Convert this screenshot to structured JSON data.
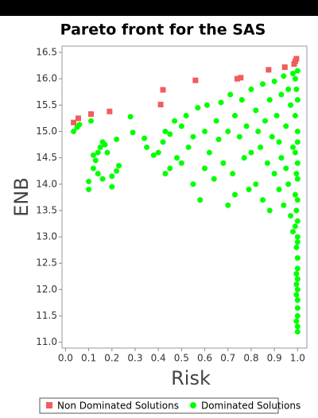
{
  "chart_data": {
    "type": "scatter",
    "title": "Pareto front for the SAS",
    "x_label": "Risk",
    "y_label": "ENB",
    "xlim": [
      -0.015,
      1.04
    ],
    "ylim": [
      10.89,
      16.62
    ],
    "xticks": [
      {
        "value": 0,
        "label": "0.0"
      },
      0.1,
      0.2,
      0.3,
      0.4,
      0.5,
      0.6,
      0.7,
      0.8,
      0.9,
      {
        "value": 1,
        "label": "1.0"
      }
    ],
    "yticks": [
      {
        "value": 11,
        "label": "11.0"
      },
      11.5,
      {
        "value": 12,
        "label": "12.0"
      },
      12.5,
      {
        "value": 13,
        "label": "13.0"
      },
      13.5,
      {
        "value": 14,
        "label": "14.0"
      },
      14.5,
      {
        "value": 15,
        "label": "15.0"
      },
      15.5,
      {
        "value": 16,
        "label": "16.0"
      },
      16.5
    ],
    "series": [
      {
        "name": "Non Dominated Solutions",
        "color": "#f25c5c",
        "marker": "square",
        "x": [
          0.035,
          0.055,
          0.11,
          0.19,
          0.41,
          0.42,
          0.56,
          0.74,
          0.755,
          0.875,
          0.945,
          0.985,
          0.99,
          0.995
        ],
        "values": [
          15.17,
          15.25,
          15.33,
          15.38,
          15.51,
          15.79,
          15.97,
          16.0,
          16.02,
          16.17,
          16.22,
          16.28,
          16.33,
          16.38
        ]
      },
      {
        "name": "Dominated Solutions",
        "color": "#00ff00",
        "marker": "circle",
        "x": [
          0.035,
          0.05,
          0.06,
          0.11,
          0.1,
          0.1,
          0.12,
          0.12,
          0.13,
          0.14,
          0.14,
          0.15,
          0.16,
          0.17,
          0.16,
          0.18,
          0.2,
          0.2,
          0.22,
          0.22,
          0.23,
          0.28,
          0.29,
          0.34,
          0.35,
          0.38,
          0.4,
          0.42,
          0.43,
          0.43,
          0.45,
          0.45,
          0.47,
          0.48,
          0.5,
          0.5,
          0.52,
          0.53,
          0.55,
          0.55,
          0.57,
          0.58,
          0.6,
          0.6,
          0.61,
          0.62,
          0.64,
          0.65,
          0.66,
          0.67,
          0.68,
          0.7,
          0.7,
          0.71,
          0.72,
          0.73,
          0.73,
          0.75,
          0.76,
          0.77,
          0.78,
          0.79,
          0.8,
          0.8,
          0.82,
          0.82,
          0.83,
          0.84,
          0.85,
          0.85,
          0.86,
          0.87,
          0.88,
          0.88,
          0.89,
          0.9,
          0.9,
          0.91,
          0.92,
          0.92,
          0.93,
          0.93,
          0.94,
          0.94,
          0.95,
          0.95,
          0.96,
          0.96,
          0.97,
          0.97,
          0.98,
          0.98,
          0.98,
          0.99,
          0.99,
          0.99,
          0.99,
          0.99,
          1.0,
          1.0,
          1.0,
          1.0,
          1.0,
          1.0,
          1.0,
          1.0,
          1.0,
          1.0,
          1.0,
          1.0,
          1.0,
          1.0,
          1.0,
          1.0,
          1.0,
          1.0,
          1.0,
          0.995,
          0.995,
          0.995,
          0.995,
          0.995,
          0.995,
          0.995,
          0.995
        ],
        "values": [
          15.0,
          15.08,
          15.13,
          15.2,
          13.9,
          14.05,
          14.3,
          14.55,
          14.45,
          14.2,
          14.6,
          14.7,
          14.8,
          14.75,
          14.1,
          14.6,
          13.95,
          14.15,
          14.25,
          14.85,
          14.35,
          15.28,
          14.98,
          14.87,
          14.7,
          14.55,
          14.6,
          14.8,
          15.0,
          14.2,
          14.95,
          14.3,
          15.2,
          14.5,
          15.1,
          14.4,
          15.3,
          14.7,
          14.9,
          14.0,
          15.45,
          13.7,
          15.0,
          14.3,
          15.5,
          14.6,
          14.1,
          15.2,
          14.85,
          15.55,
          14.4,
          13.6,
          15.0,
          15.7,
          14.2,
          13.8,
          15.3,
          14.9,
          15.6,
          14.5,
          15.1,
          13.9,
          15.8,
          14.6,
          15.4,
          14.0,
          15.0,
          14.7,
          15.9,
          13.7,
          15.2,
          14.4,
          15.6,
          13.5,
          14.9,
          15.95,
          14.2,
          15.3,
          13.9,
          14.8,
          15.7,
          14.5,
          16.05,
          13.6,
          15.1,
          14.3,
          15.8,
          14.0,
          15.5,
          13.4,
          16.1,
          14.7,
          13.1,
          16.0,
          15.3,
          14.6,
          13.8,
          13.2,
          16.15,
          15.6,
          15.0,
          14.4,
          13.7,
          13.0,
          12.6,
          12.2,
          11.8,
          11.5,
          11.3,
          11.2,
          12.9,
          12.4,
          12.0,
          11.65,
          13.3,
          14.1,
          14.8,
          15.8,
          14.2,
          12.8,
          12.1,
          11.4,
          11.9,
          12.3,
          13.5
        ]
      }
    ]
  }
}
